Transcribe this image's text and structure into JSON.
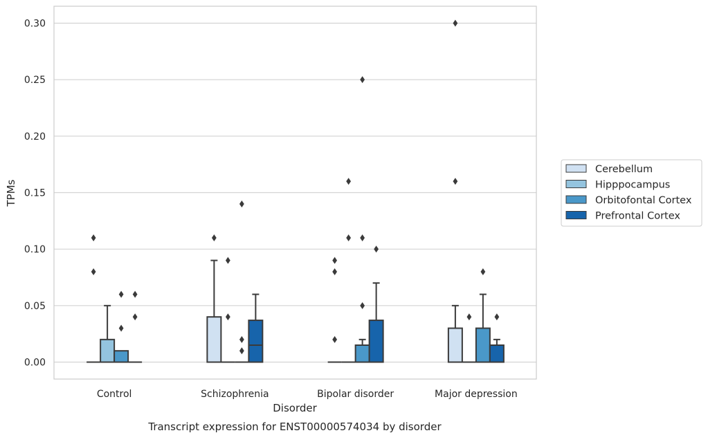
{
  "chart_data": {
    "type": "boxplot",
    "title": "Transcript expression for ENST00000574034 by disorder",
    "xlabel": "Disorder",
    "ylabel": "TPMs",
    "ylim": [
      -0.015,
      0.315
    ],
    "yticks": [
      "0.00",
      "0.05",
      "0.10",
      "0.15",
      "0.20",
      "0.25",
      "0.30"
    ],
    "categories": [
      "Control",
      "Schizophrenia",
      "Bipolar disorder",
      "Major depression"
    ],
    "grid": true,
    "legend_position": "right",
    "series": [
      {
        "name": "Cerebellum",
        "color": "#d0e1f2",
        "boxes": [
          {
            "q1": 0,
            "median": 0,
            "q3": 0,
            "whislo": 0,
            "whishi": 0,
            "fliers": [
              0.08,
              0.11
            ]
          },
          {
            "q1": 0,
            "median": 0,
            "q3": 0.04,
            "whislo": 0,
            "whishi": 0.09,
            "fliers": [
              0.11
            ]
          },
          {
            "q1": 0,
            "median": 0,
            "q3": 0,
            "whislo": 0,
            "whishi": 0,
            "fliers": [
              0.02,
              0.08,
              0.09
            ]
          },
          {
            "q1": 0,
            "median": 0,
            "q3": 0.03,
            "whislo": 0,
            "whishi": 0.05,
            "fliers": [
              0.16,
              0.3
            ]
          }
        ]
      },
      {
        "name": "Hipppocampus",
        "color": "#94c4df",
        "boxes": [
          {
            "q1": 0,
            "median": 0,
            "q3": 0.02,
            "whislo": 0,
            "whishi": 0.05,
            "fliers": []
          },
          {
            "q1": 0,
            "median": 0,
            "q3": 0,
            "whislo": 0,
            "whishi": 0,
            "fliers": [
              0.04,
              0.09
            ]
          },
          {
            "q1": 0,
            "median": 0,
            "q3": 0,
            "whislo": 0,
            "whishi": 0,
            "fliers": [
              0.11,
              0.16
            ]
          },
          {
            "q1": 0,
            "median": 0,
            "q3": 0,
            "whislo": 0,
            "whishi": 0,
            "fliers": [
              0.04
            ]
          }
        ]
      },
      {
        "name": "Orbitofontal Cortex",
        "color": "#4a98c9",
        "boxes": [
          {
            "q1": 0,
            "median": 0,
            "q3": 0.01,
            "whislo": 0,
            "whishi": 0.01,
            "fliers": [
              0.03,
              0.06
            ]
          },
          {
            "q1": 0,
            "median": 0,
            "q3": 0,
            "whislo": 0,
            "whishi": 0,
            "fliers": [
              0.01,
              0.02,
              0.14
            ]
          },
          {
            "q1": 0,
            "median": 0,
            "q3": 0.015,
            "whislo": 0,
            "whishi": 0.02,
            "fliers": [
              0.05,
              0.11,
              0.25
            ]
          },
          {
            "q1": 0,
            "median": 0,
            "q3": 0.03,
            "whislo": 0,
            "whishi": 0.06,
            "fliers": [
              0.08
            ]
          }
        ]
      },
      {
        "name": "Prefrontal Cortex",
        "color": "#1764ab",
        "boxes": [
          {
            "q1": 0,
            "median": 0,
            "q3": 0,
            "whislo": 0,
            "whishi": 0,
            "fliers": [
              0.04,
              0.06
            ]
          },
          {
            "q1": 0,
            "median": 0.015,
            "q3": 0.037,
            "whislo": 0,
            "whishi": 0.06,
            "fliers": []
          },
          {
            "q1": 0,
            "median": 0,
            "q3": 0.037,
            "whislo": 0,
            "whishi": 0.07,
            "fliers": [
              0.1
            ]
          },
          {
            "q1": 0,
            "median": 0,
            "q3": 0.015,
            "whislo": 0,
            "whishi": 0.02,
            "fliers": [
              0.04
            ]
          }
        ]
      }
    ]
  }
}
